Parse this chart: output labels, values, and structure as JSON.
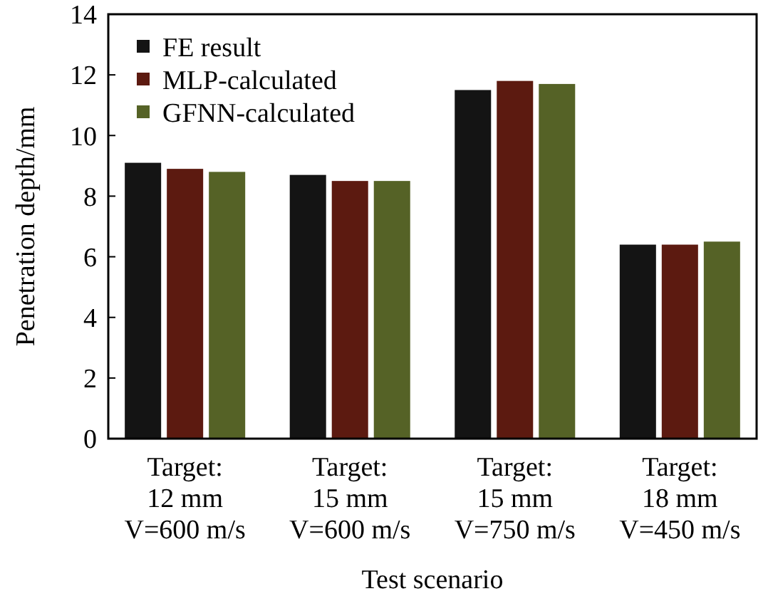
{
  "chart_data": {
    "type": "bar",
    "xlabel": "Test scenario",
    "ylabel": "Penetration depth/mm",
    "categories": [
      "Target:\n12 mm\nV=600 m/s",
      "Target:\n15 mm\nV=600 m/s",
      "Target:\n15 mm\nV=750 m/s",
      "Target:\n18 mm\nV=450 m/s"
    ],
    "series": [
      {
        "name": "FE result",
        "color": "#141414",
        "values": [
          9.1,
          8.7,
          11.5,
          6.4
        ]
      },
      {
        "name": "MLP-calculated",
        "color": "#5c1a10",
        "values": [
          8.9,
          8.5,
          11.8,
          6.4
        ]
      },
      {
        "name": "GFNN-calculated",
        "color": "#556226",
        "values": [
          8.8,
          8.5,
          11.7,
          6.5
        ]
      }
    ],
    "ylim": [
      0,
      14
    ],
    "yticks": [
      0,
      2,
      4,
      6,
      8,
      10,
      12,
      14
    ],
    "grid": false,
    "legend": "top left"
  }
}
